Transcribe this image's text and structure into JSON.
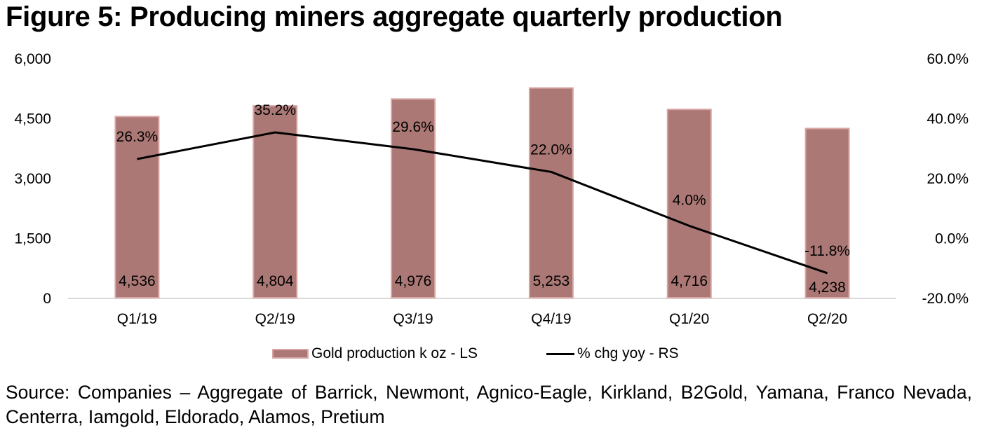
{
  "figure": {
    "title": "Figure 5: Producing miners aggregate quarterly production",
    "source": "Source: Companies – Aggregate of Barrick, Newmont, Agnico-Eagle, Kirkland, B2Gold, Yamana, Franco Nevada, Centerra, Iamgold, Eldorado, Alamos, Pretium"
  },
  "colors": {
    "bar_fill": "#ab7875",
    "bar_border": "#d9a6a4",
    "line": "#000000",
    "axis_line": "#d9d9d9"
  },
  "chart_data": {
    "type": "bar+line",
    "title": "Figure 5: Producing miners aggregate quarterly production",
    "categories": [
      "Q1/19",
      "Q2/19",
      "Q3/19",
      "Q4/19",
      "Q1/20",
      "Q2/20"
    ],
    "series": [
      {
        "name": "Gold production k oz - LS",
        "type": "bar",
        "axis": "left",
        "values": [
          4536,
          4804,
          4976,
          5253,
          4716,
          4238
        ],
        "labels": [
          "4,536",
          "4,804",
          "4,976",
          "5,253",
          "4,716",
          "4,238"
        ]
      },
      {
        "name": "% chg yoy - RS",
        "type": "line",
        "axis": "right",
        "values": [
          26.3,
          35.2,
          29.6,
          22.0,
          4.0,
          -11.8
        ],
        "labels": [
          "26.3%",
          "35.2%",
          "29.6%",
          "22.0%",
          "4.0%",
          "-11.8%"
        ]
      }
    ],
    "left_axis": {
      "range": [
        0,
        6000
      ],
      "ticks": [
        0,
        1500,
        3000,
        4500,
        6000
      ],
      "tick_labels": [
        "0",
        "1,500",
        "3,000",
        "4,500",
        "6,000"
      ]
    },
    "right_axis": {
      "range": [
        -20,
        60
      ],
      "ticks": [
        -20,
        0,
        20,
        40,
        60
      ],
      "tick_labels": [
        "-20.0%",
        "0.0%",
        "20.0%",
        "40.0%",
        "60.0%"
      ]
    },
    "xlabel": "",
    "ylabel_left": "",
    "ylabel_right": "",
    "grid": false,
    "legend": {
      "position": "bottom",
      "entries": [
        "Gold production k oz - LS",
        "% chg yoy - RS"
      ]
    }
  }
}
